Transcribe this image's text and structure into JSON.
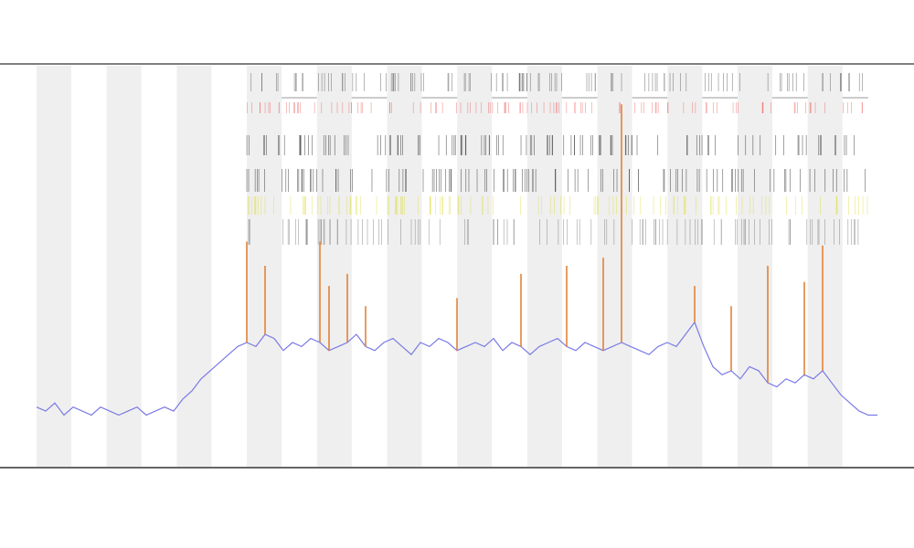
{
  "chart_data": {
    "type": "line",
    "ylim": [
      0,
      100
    ],
    "series": [
      {
        "color": "#7a7ae6",
        "values": [
          15,
          14,
          16,
          13,
          15,
          14,
          13,
          15,
          14,
          13,
          14,
          15,
          13,
          14,
          15,
          14,
          17,
          19,
          22,
          24,
          26,
          28,
          30,
          31,
          30,
          33,
          32,
          29,
          31,
          30,
          32,
          31,
          29,
          30,
          31,
          33,
          30,
          29,
          31,
          32,
          30,
          28,
          31,
          30,
          32,
          31,
          29,
          30,
          31,
          30,
          32,
          29,
          31,
          30,
          28,
          30,
          31,
          32,
          30,
          29,
          31,
          30,
          29,
          30,
          31,
          30,
          29,
          28,
          30,
          31,
          30,
          33,
          36,
          30,
          25,
          23,
          24,
          22,
          25,
          24,
          21,
          20,
          22,
          21,
          23,
          22,
          24,
          21,
          18,
          16,
          14,
          13,
          13
        ]
      },
      {
        "color": "#e07b2a",
        "values": [
          null,
          null,
          null,
          null,
          null,
          null,
          null,
          null,
          null,
          null,
          null,
          null,
          null,
          null,
          null,
          null,
          null,
          null,
          null,
          null,
          null,
          null,
          null,
          56,
          null,
          50,
          null,
          null,
          null,
          null,
          null,
          56,
          45,
          null,
          48,
          null,
          40,
          null,
          null,
          null,
          null,
          null,
          null,
          null,
          null,
          null,
          42,
          null,
          null,
          null,
          null,
          null,
          null,
          48,
          null,
          null,
          null,
          null,
          50,
          null,
          null,
          null,
          52,
          null,
          90,
          null,
          null,
          null,
          null,
          null,
          null,
          null,
          45,
          null,
          null,
          null,
          40,
          null,
          null,
          null,
          50,
          null,
          null,
          null,
          46,
          null,
          55,
          null,
          null,
          null,
          null,
          null,
          null
        ]
      }
    ]
  }
}
